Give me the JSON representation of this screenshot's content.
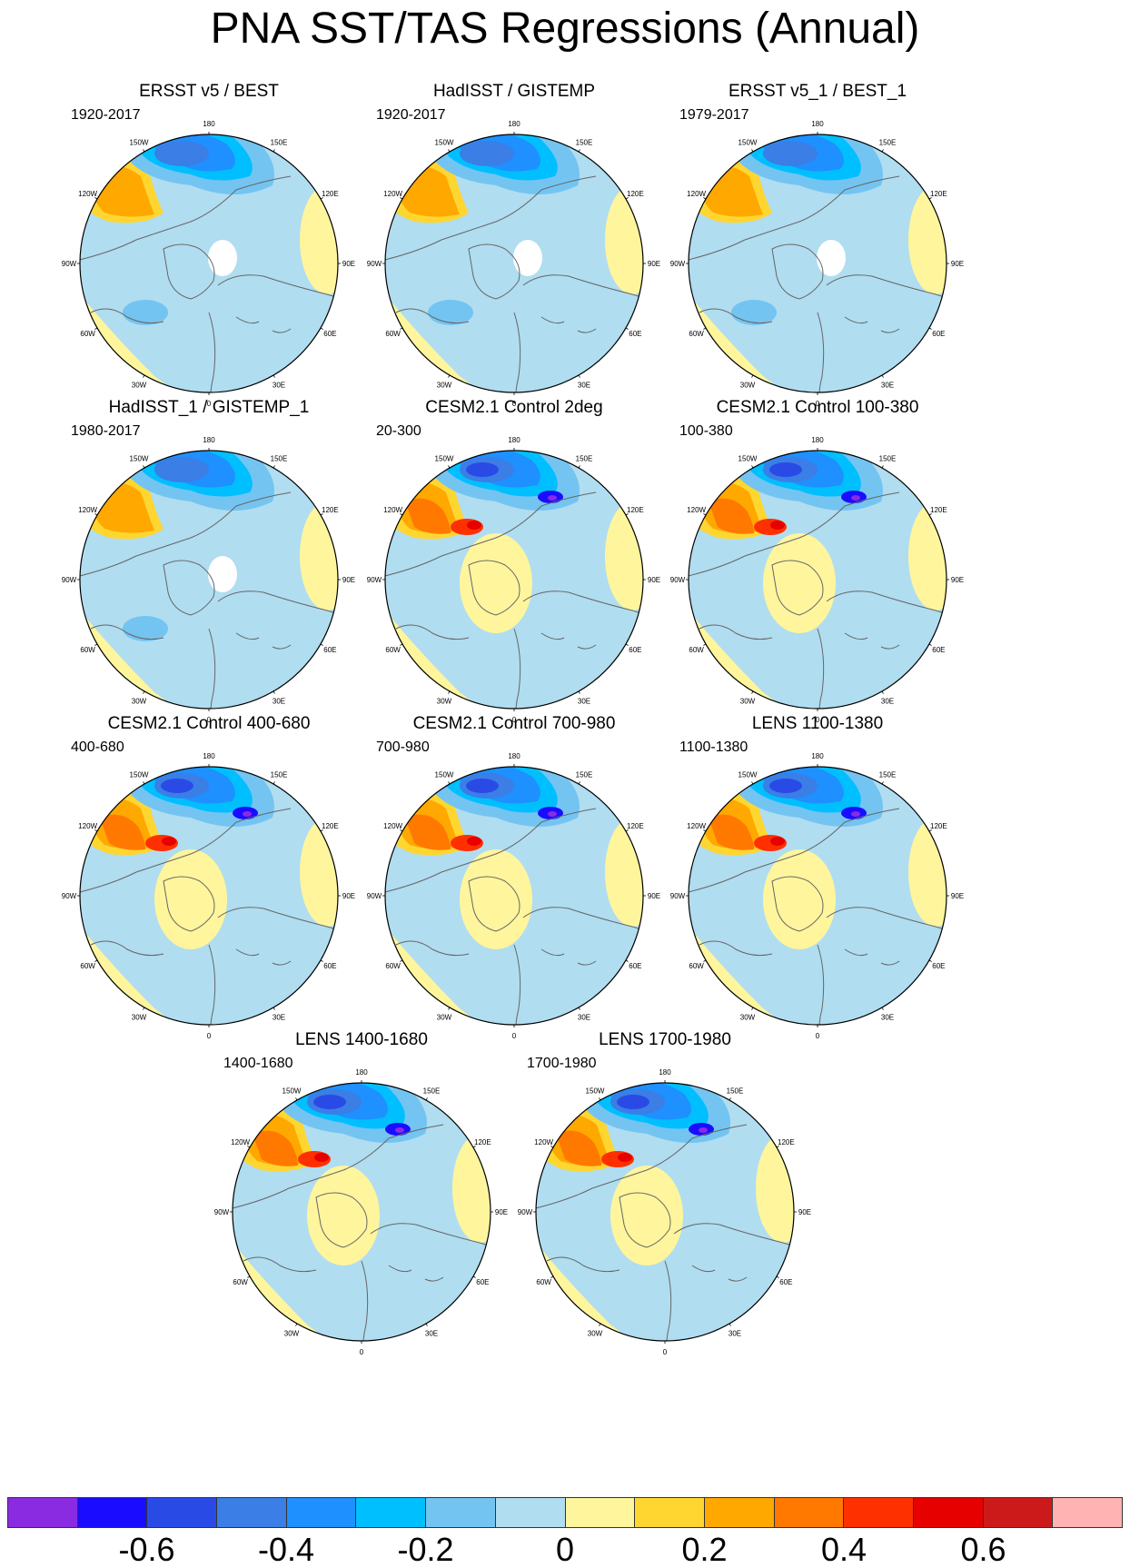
{
  "title": "PNA SST/TAS Regressions (Annual)",
  "panels": [
    {
      "title": "ERSST v5 / BEST",
      "period": "1920-2017",
      "variant": "obs"
    },
    {
      "title": "HadISST / GISTEMP",
      "period": "1920-2017",
      "variant": "obs"
    },
    {
      "title": "ERSST v5_1 / BEST_1",
      "period": "1979-2017",
      "variant": "obs"
    },
    {
      "title": "HadISST_1 / GISTEMP_1",
      "period": "1980-2017",
      "variant": "obs"
    },
    {
      "title": "CESM2.1 Control 2deg",
      "period": "20-300",
      "variant": "model"
    },
    {
      "title": "CESM2.1 Control 100-380",
      "period": "100-380",
      "variant": "model"
    },
    {
      "title": "CESM2.1 Control 400-680",
      "period": "400-680",
      "variant": "model"
    },
    {
      "title": "CESM2.1 Control 700-980",
      "period": "700-980",
      "variant": "model"
    },
    {
      "title": "LENS 1100-1380",
      "period": "1100-1380",
      "variant": "model"
    },
    {
      "title": "LENS 1400-1680",
      "period": "1400-1680",
      "variant": "model"
    },
    {
      "title": "LENS 1700-1980",
      "period": "1700-1980",
      "variant": "model"
    }
  ],
  "longitude_labels": [
    "180",
    "150E",
    "120E",
    "90E",
    "60E",
    "30E",
    "0",
    "30W",
    "60W",
    "90W",
    "120W",
    "150W"
  ],
  "colorbar": {
    "colors": [
      "#8a2be2",
      "#1a0dff",
      "#2a4ae6",
      "#3a7ee6",
      "#1e90ff",
      "#00bfff",
      "#74c4f2",
      "#b0ddf0",
      "#fff59d",
      "#ffd630",
      "#ffa800",
      "#ff7800",
      "#ff3000",
      "#e60000",
      "#cc1a1a",
      "#ffb3b3"
    ],
    "tick_values": [
      -0.6,
      -0.4,
      -0.2,
      0,
      0.2,
      0.4,
      0.6
    ],
    "tick_labels": [
      "-0.6",
      "-0.4",
      "-0.2",
      "0",
      "0.2",
      "0.4",
      "0.6"
    ]
  }
}
